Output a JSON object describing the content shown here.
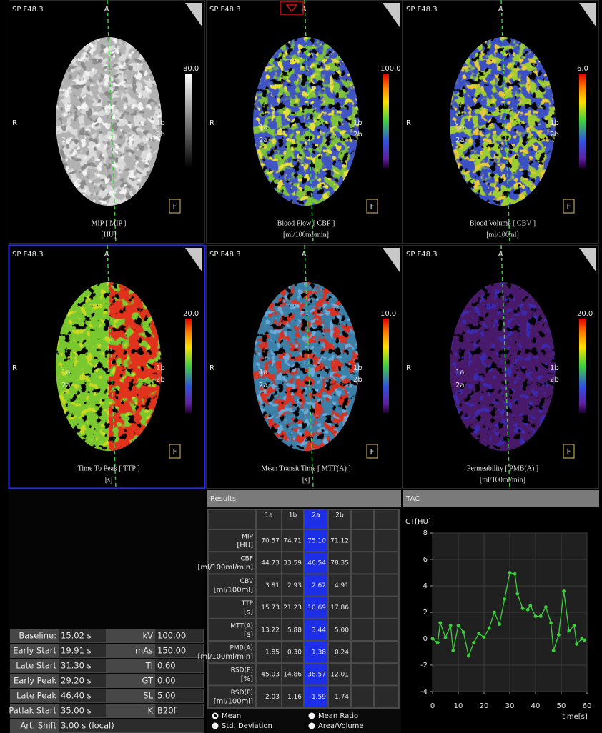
{
  "panels": [
    {
      "label": "SP F48.3",
      "top": "A",
      "left": "R",
      "title": "MIP [ MIP ]",
      "unit": "[HU]",
      "scale_max": "80.0",
      "flag": "F",
      "regions": [
        "1a",
        "2a",
        "1b",
        "2b"
      ]
    },
    {
      "label": "SP F48.3",
      "top": "A",
      "left": "R",
      "title": "Blood Flow [ CBF ]",
      "unit": "[ml/100ml/min]",
      "scale_max": "100.0",
      "flag": "F",
      "regions": [
        "1a",
        "2a",
        "1b",
        "2b"
      ]
    },
    {
      "label": "SP F48.3",
      "top": "A",
      "left": "R",
      "title": "Blood Volume [ CBV ]",
      "unit": "[ml/100ml]",
      "scale_max": "6.0",
      "flag": "F",
      "regions": [
        "1a",
        "2a",
        "1b",
        "2b"
      ]
    },
    {
      "label": "SP F48.3",
      "top": "A",
      "left": "R",
      "title": "Time To Peak [ TTP ]",
      "unit": "[s]",
      "scale_max": "20.0",
      "flag": "F",
      "regions": [
        "1a",
        "2a",
        "1b",
        "2b"
      ]
    },
    {
      "label": "SP F48.3",
      "top": "A",
      "left": "R",
      "title": "Mean Transit Time [ MTT(A) ]",
      "unit": "[s]",
      "scale_max": "10.0",
      "flag": "F",
      "regions": [
        "1a",
        "2a",
        "1b",
        "2b"
      ]
    },
    {
      "label": "SP F48.3",
      "top": "A",
      "left": "R",
      "title": "Permeability [ PMB(A) ]",
      "unit": "[ml/100ml/min]",
      "scale_max": "20.0",
      "flag": "F",
      "regions": [
        "1a",
        "2a",
        "1b",
        "2b"
      ]
    }
  ],
  "parameters": {
    "rows": [
      [
        "Baseline:",
        "15.02 s",
        "kV",
        "100.00"
      ],
      [
        "Early Start",
        "19.91 s",
        "mAs",
        "150.00"
      ],
      [
        "Late Start",
        "31.30 s",
        "TI",
        "0.60"
      ],
      [
        "Early Peak",
        "29.20 s",
        "GT",
        "0.00"
      ],
      [
        "Late Peak",
        "46.40 s",
        "SL",
        "5.00"
      ],
      [
        "Patlak Start",
        "35.00 s",
        "K",
        "B20f"
      ],
      [
        "Art. Shift",
        "3.00 s (local)"
      ]
    ]
  },
  "results": {
    "title": "Results",
    "columns": [
      "1a",
      "1b",
      "2a",
      "2b"
    ],
    "rows": [
      {
        "label": [
          "MIP",
          "[HU]"
        ],
        "values": [
          "70.57",
          "74.71",
          "75.10",
          "71.12"
        ]
      },
      {
        "label": [
          "CBF",
          "[ml/100ml/min]"
        ],
        "values": [
          "44.73",
          "33.59",
          "46.54",
          "78.35"
        ]
      },
      {
        "label": [
          "CBV",
          "[ml/100ml]"
        ],
        "values": [
          "3.81",
          "2.93",
          "2.62",
          "4.91"
        ]
      },
      {
        "label": [
          "TTP",
          "[s]"
        ],
        "values": [
          "15.73",
          "21.23",
          "10.69",
          "17.86"
        ]
      },
      {
        "label": [
          "MTT(A)",
          "[s]"
        ],
        "values": [
          "13.22",
          "5.88",
          "3.44",
          "5.00"
        ]
      },
      {
        "label": [
          "PMB(A)",
          "[ml/100ml/min]"
        ],
        "values": [
          "1.85",
          "0.30",
          "1.38",
          "0.24"
        ]
      },
      {
        "label": [
          "RSD(P)",
          "[%]"
        ],
        "values": [
          "45.03",
          "14.86",
          "38.57",
          "12.01"
        ]
      },
      {
        "label": [
          "RSD(P)",
          "[ml/100ml]"
        ],
        "values": [
          "2.03",
          "1.16",
          "1.59",
          "1.74"
        ]
      }
    ],
    "options": [
      "Mean",
      "Std. Deviation",
      "Mean Ratio",
      "Area/Volume"
    ]
  },
  "chart_data": {
    "type": "line",
    "title": "TAC",
    "y_label": "CT[HU]",
    "x_label": "time[s]",
    "x": [
      0,
      2,
      3,
      5,
      7,
      8,
      10,
      12,
      14,
      16,
      18,
      20,
      22,
      24,
      26,
      28,
      30,
      32,
      33,
      35,
      37,
      38,
      40,
      42,
      44,
      46,
      47,
      49,
      51,
      53,
      55,
      56,
      58,
      59
    ],
    "values": [
      0,
      -0.3,
      1.2,
      0.1,
      1,
      -0.9,
      1,
      0.5,
      -1.3,
      -0.3,
      0.4,
      0.1,
      0.8,
      2,
      1.1,
      3,
      5,
      4.9,
      3.4,
      2.3,
      2.2,
      2.5,
      1.7,
      1.7,
      2.4,
      1.2,
      -0.9,
      0.3,
      3.6,
      0.6,
      1,
      -0.4,
      0,
      -0.1
    ],
    "color": "#3ccf3c",
    "xlim": [
      0,
      60
    ],
    "ylim": [
      -4,
      8
    ],
    "xticks": [
      0,
      10,
      20,
      30,
      40,
      50,
      60
    ],
    "yticks": [
      -4,
      -2,
      0,
      2,
      4,
      6,
      8
    ],
    "grid": true
  }
}
